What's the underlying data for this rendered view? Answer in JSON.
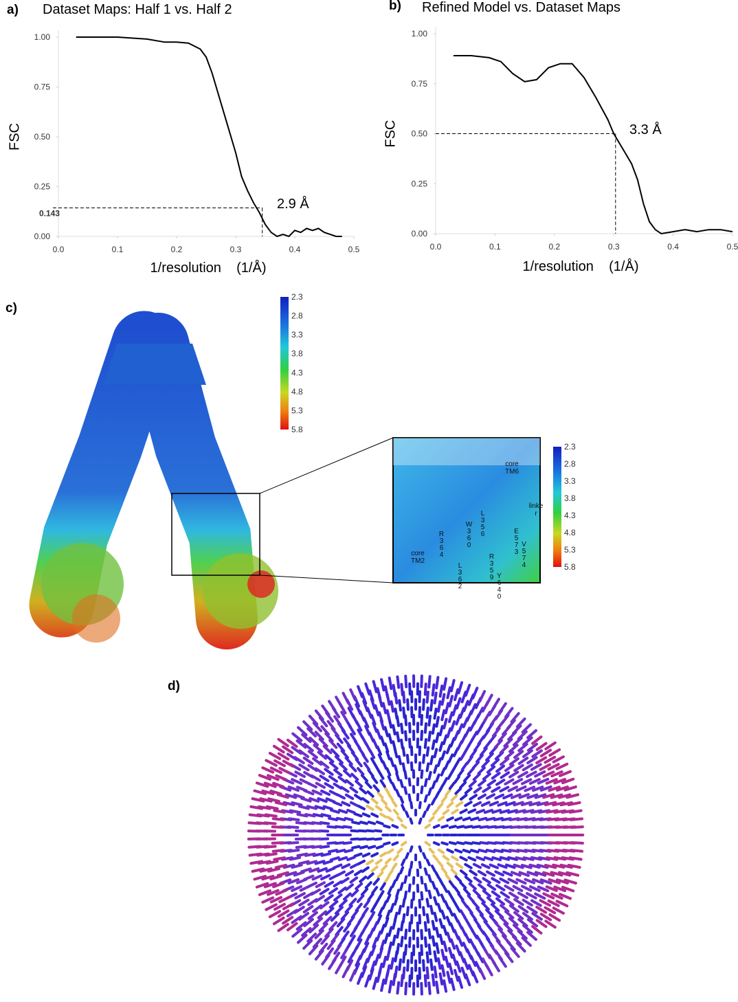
{
  "chart_data": [
    {
      "type": "line",
      "panel": "a)",
      "title": "Dataset Maps: Half 1 vs. Half 2",
      "ylabel": "FSC",
      "xlabel": "1/resolution    (1/Å)",
      "x": [
        0.03,
        0.05,
        0.1,
        0.15,
        0.18,
        0.2,
        0.22,
        0.24,
        0.25,
        0.26,
        0.27,
        0.28,
        0.29,
        0.3,
        0.31,
        0.32,
        0.33,
        0.34,
        0.35,
        0.36,
        0.37,
        0.38,
        0.39,
        0.4,
        0.41,
        0.42,
        0.43,
        0.44,
        0.45,
        0.46,
        0.47,
        0.48
      ],
      "values": [
        1.0,
        1.0,
        1.0,
        0.99,
        0.975,
        0.975,
        0.97,
        0.94,
        0.9,
        0.82,
        0.72,
        0.62,
        0.52,
        0.42,
        0.3,
        0.23,
        0.17,
        0.12,
        0.06,
        0.02,
        0.0,
        0.01,
        0.0,
        0.03,
        0.02,
        0.04,
        0.03,
        0.04,
        0.02,
        0.01,
        0.0,
        0.0
      ],
      "color": "#000000",
      "xlim": [
        0,
        0.5
      ],
      "ylim": [
        0,
        1
      ],
      "xticks": [
        {
          "value": 0,
          "label": "0.0"
        },
        0.1,
        0.2,
        0.3,
        0.4,
        0.5
      ],
      "yticks": [
        {
          "value": 0,
          "label": "0.00"
        },
        0.25,
        {
          "value": 0.5,
          "label": "0.50"
        },
        0.75,
        {
          "value": 1,
          "label": "1.00"
        }
      ],
      "cutoff": {
        "fsc": 0.143,
        "fsc_label": "0.143",
        "resolution": 0.345,
        "label": "2.9 Å"
      }
    },
    {
      "type": "line",
      "panel": "b)",
      "title": "Refined Model vs. Dataset Maps",
      "ylabel": "FSC",
      "xlabel": "1/resolution    (1/Å)",
      "x": [
        0.03,
        0.06,
        0.09,
        0.11,
        0.13,
        0.15,
        0.17,
        0.19,
        0.21,
        0.23,
        0.25,
        0.27,
        0.29,
        0.3,
        0.31,
        0.32,
        0.33,
        0.34,
        0.35,
        0.36,
        0.37,
        0.38,
        0.4,
        0.42,
        0.44,
        0.46,
        0.48,
        0.5
      ],
      "values": [
        0.89,
        0.89,
        0.88,
        0.86,
        0.8,
        0.76,
        0.77,
        0.83,
        0.85,
        0.85,
        0.78,
        0.68,
        0.57,
        0.5,
        0.45,
        0.4,
        0.35,
        0.27,
        0.15,
        0.06,
        0.02,
        0.0,
        0.01,
        0.02,
        0.01,
        0.02,
        0.02,
        0.01
      ],
      "color": "#000000",
      "xlim": [
        0,
        0.5
      ],
      "ylim": [
        0,
        1
      ],
      "xticks": [
        {
          "value": 0,
          "label": "0.0"
        },
        0.1,
        0.2,
        0.3,
        0.4,
        0.5
      ],
      "yticks": [
        {
          "value": 0,
          "label": "0.00"
        },
        0.25,
        {
          "value": 0.5,
          "label": "0.50"
        },
        0.75,
        {
          "value": 1,
          "label": "1.00"
        }
      ],
      "cutoff": {
        "fsc": 0.5,
        "resolution": 0.303,
        "label": "3.3 Å"
      }
    }
  ],
  "panel_c": {
    "label": "c)",
    "colorbar": {
      "ticks": [
        2.3,
        2.8,
        3.3,
        3.8,
        4.3,
        4.8,
        5.3,
        5.8
      ]
    },
    "inset": {
      "colorbar": {
        "ticks": [
          2.3,
          2.8,
          3.3,
          3.8,
          4.3,
          4.8,
          5.3,
          5.8
        ]
      },
      "labels": [
        "core TM6",
        "linker",
        "W360",
        "L356",
        "R364",
        "E573",
        "V574",
        "core TM2",
        "L362",
        "R359",
        "Y640"
      ]
    }
  },
  "panel_d": {
    "label": "d)"
  }
}
